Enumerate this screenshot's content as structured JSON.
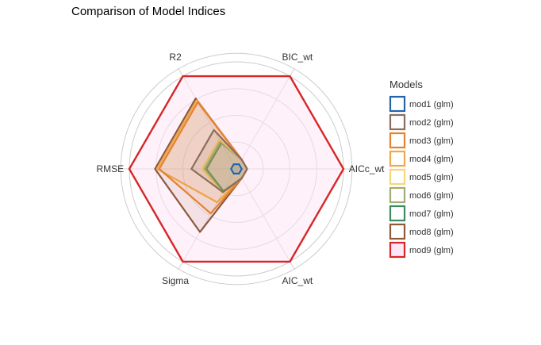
{
  "chart_data": {
    "type": "radar",
    "title": "Comparison of Model Indices",
    "axes": [
      "AICc_wt",
      "AIC_wt",
      "Sigma",
      "RMSE",
      "R2",
      "BIC_wt"
    ],
    "rlim": [
      0,
      1
    ],
    "grid": true,
    "legend": {
      "title": "Models",
      "position": "right"
    },
    "series": [
      {
        "name": "mod1 (glm)",
        "color": "#2166AC",
        "values": [
          0.05,
          0.05,
          0.05,
          0.05,
          0.05,
          0.05
        ]
      },
      {
        "name": "mod2 (glm)",
        "color": "#8C6D5B",
        "values": [
          0.1,
          0.1,
          0.25,
          0.42,
          0.42,
          0.1
        ]
      },
      {
        "name": "mod3 (glm)",
        "color": "#E6812D",
        "values": [
          0.1,
          0.1,
          0.48,
          0.72,
          0.72,
          0.1
        ]
      },
      {
        "name": "mod4 (glm)",
        "color": "#F0A84A",
        "values": [
          0.1,
          0.1,
          0.36,
          0.74,
          0.74,
          0.1
        ]
      },
      {
        "name": "mod5 (glm)",
        "color": "#F6D67A",
        "values": [
          0.1,
          0.1,
          0.26,
          0.32,
          0.32,
          0.1
        ]
      },
      {
        "name": "mod6 (glm)",
        "color": "#9EAD74",
        "values": [
          0.1,
          0.1,
          0.26,
          0.3,
          0.3,
          0.1
        ]
      },
      {
        "name": "mod7 (glm)",
        "color": "#3C8A5E",
        "values": [
          0.1,
          0.1,
          0.24,
          0.28,
          0.28,
          0.1
        ]
      },
      {
        "name": "mod8 (glm)",
        "color": "#8C5A3C",
        "values": [
          0.1,
          0.1,
          0.68,
          0.76,
          0.76,
          0.1
        ]
      },
      {
        "name": "mod9 (glm)",
        "color": "#D62728",
        "values": [
          1.0,
          1.0,
          1.0,
          1.0,
          1.0,
          1.0
        ]
      }
    ]
  }
}
